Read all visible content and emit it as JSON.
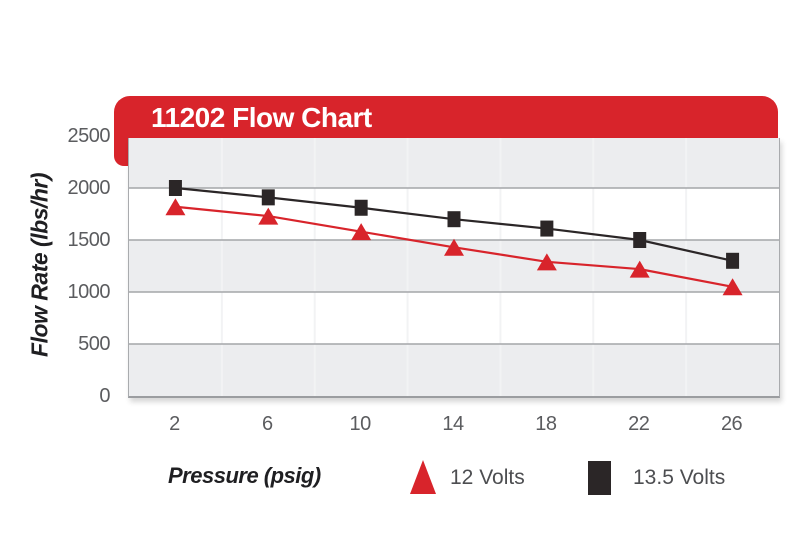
{
  "header": {
    "title": "11202 Flow Chart",
    "background_color": "#D8242B",
    "text_color": "#FFFFFF"
  },
  "chart_data": {
    "type": "line",
    "title": "11202 Flow Chart",
    "xlabel": "Pressure (psig)",
    "ylabel": "Flow Rate (lbs/hr)",
    "categories": [
      2,
      6,
      10,
      14,
      18,
      22,
      26
    ],
    "series": [
      {
        "name": "12 Volts",
        "marker": "triangle",
        "color": "#D8242B",
        "values": [
          1820,
          1730,
          1580,
          1430,
          1290,
          1220,
          1050
        ]
      },
      {
        "name": "13.5 Volts",
        "marker": "square",
        "color": "#2B2627",
        "values": [
          2000,
          1910,
          1810,
          1700,
          1610,
          1500,
          1300
        ]
      }
    ],
    "ylim": [
      0,
      2500
    ],
    "yticks": [
      0,
      500,
      1000,
      1500,
      2000,
      2500
    ],
    "grid": "alternating horizontal bands every 500, faint vertical column lines",
    "legend_position": "bottom"
  },
  "legend": {
    "items": [
      {
        "label": "12 Volts",
        "marker": "triangle-icon",
        "color": "#D8242B"
      },
      {
        "label": "13.5 Volts",
        "marker": "square-icon",
        "color": "#2B2627"
      }
    ]
  },
  "colors": {
    "band_gray": "#ECEDEF",
    "band_white": "#FFFFFF",
    "h_gridline": "#A4A6A9",
    "v_gridline": "#F2F3F4",
    "tick_text": "#5B5C5F",
    "axis_title_text": "#1F1F22",
    "legend_text": "#4D4E51"
  }
}
